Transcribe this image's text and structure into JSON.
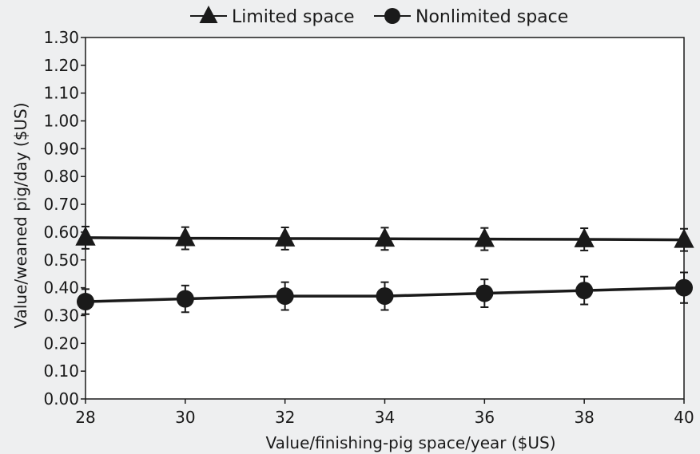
{
  "chart_data": {
    "type": "line",
    "title": "",
    "xlabel": "Value/finishing-pig space/year ($US)",
    "ylabel": "Value/weaned pig/day ($US)",
    "xlim": [
      28,
      40
    ],
    "ylim": [
      0,
      1.3
    ],
    "x_ticks": [
      "28",
      "30",
      "32",
      "34",
      "36",
      "38",
      "40"
    ],
    "y_ticks": [
      "0.00",
      "0.10",
      "0.20",
      "0.30",
      "0.40",
      "0.50",
      "0.60",
      "0.70",
      "0.80",
      "0.90",
      "1.00",
      "1.10",
      "1.20",
      "1.30"
    ],
    "legend_position": "top-center",
    "grid": false,
    "x": [
      28,
      30,
      32,
      34,
      36,
      38,
      40
    ],
    "series": [
      {
        "name": "Limited space",
        "marker": "triangle",
        "color": "#1a1a1a",
        "values": [
          0.58,
          0.578,
          0.577,
          0.576,
          0.575,
          0.574,
          0.572
        ],
        "error": [
          0.04,
          0.04,
          0.04,
          0.04,
          0.04,
          0.04,
          0.04
        ]
      },
      {
        "name": "Nonlimited space",
        "marker": "circle",
        "color": "#1a1a1a",
        "values": [
          0.35,
          0.36,
          0.37,
          0.37,
          0.38,
          0.39,
          0.4
        ],
        "error": [
          0.045,
          0.048,
          0.05,
          0.05,
          0.05,
          0.05,
          0.055
        ]
      }
    ]
  }
}
